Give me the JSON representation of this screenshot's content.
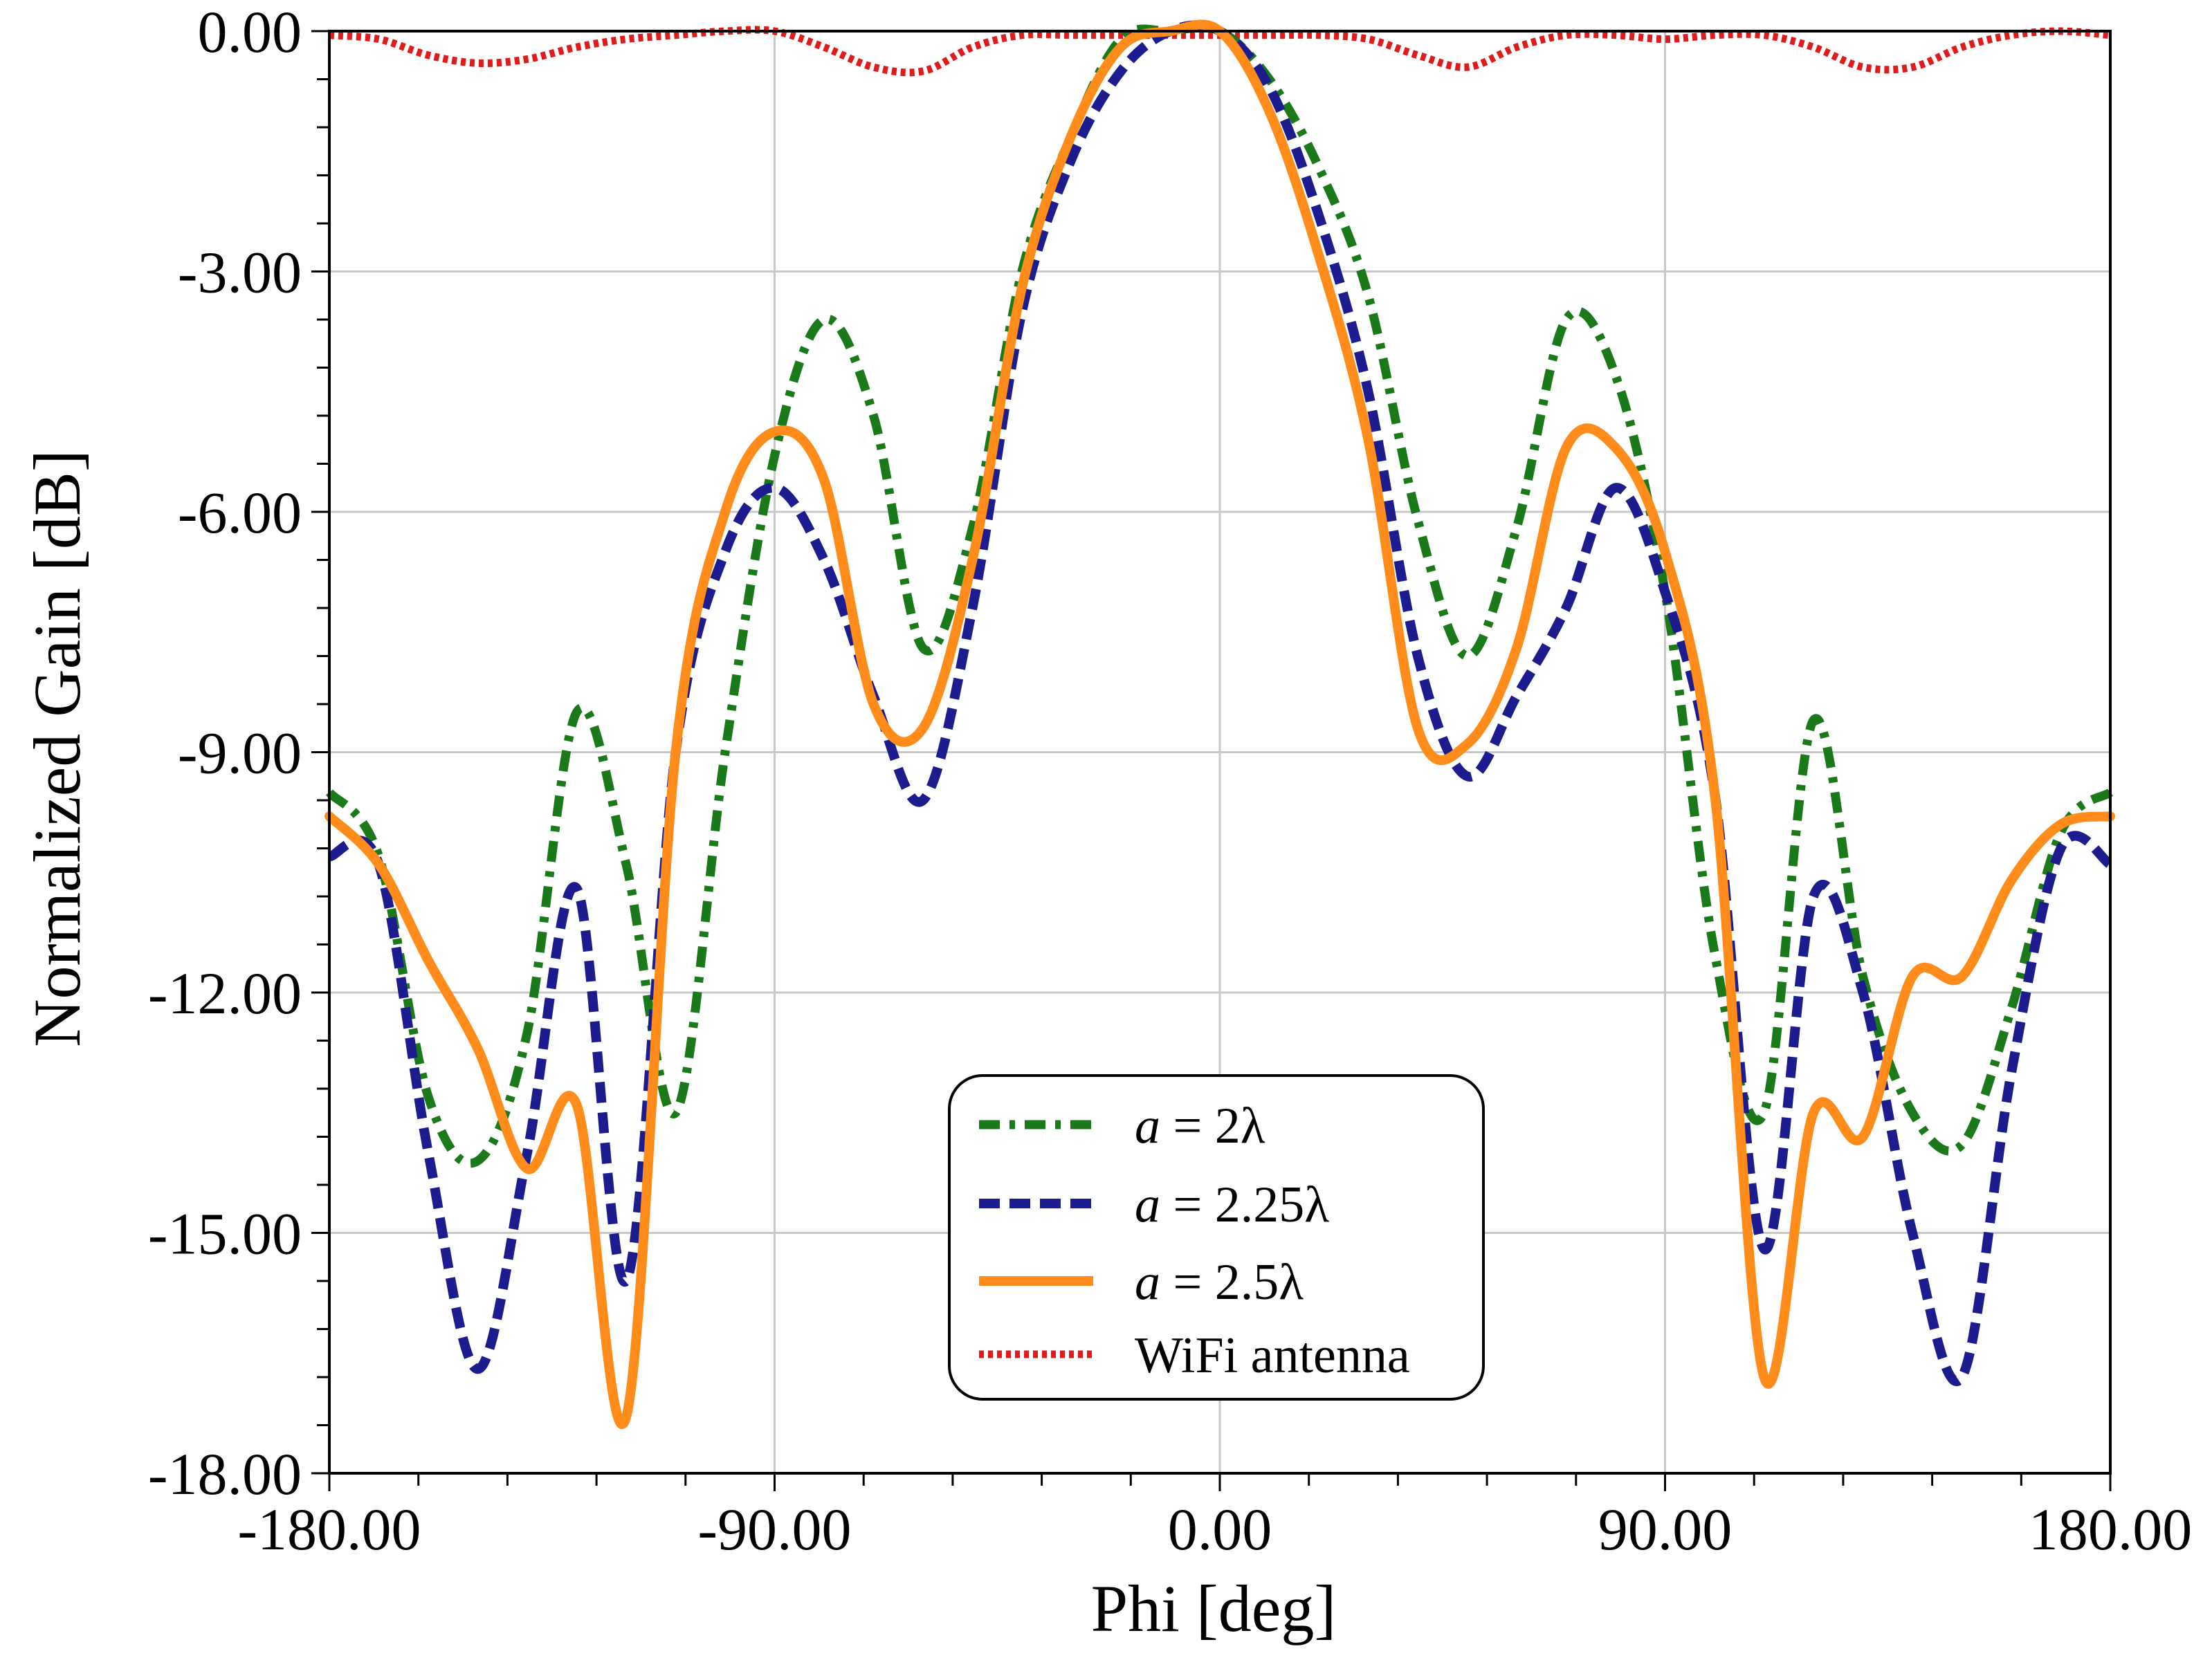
{
  "chart_data": {
    "type": "line",
    "title": "",
    "xlabel": "Phi [deg]",
    "ylabel": "Normalized Gain [dB]",
    "xlim": [
      -180,
      180
    ],
    "ylim": [
      -18,
      0
    ],
    "grid": true,
    "legend_position": "bottom-center",
    "x_ticks": [
      "-180.00",
      "-90.00",
      "0.00",
      "90.00",
      "180.00"
    ],
    "y_ticks": [
      "0.00",
      "-3.00",
      "-6.00",
      "-9.00",
      "-12.00",
      "-15.00",
      "-18.00"
    ],
    "x": [
      -180,
      -170,
      -160,
      -150,
      -140,
      -130,
      -120,
      -110,
      -100,
      -90,
      -80,
      -70,
      -60,
      -50,
      -40,
      -30,
      -20,
      -10,
      0,
      10,
      20,
      30,
      40,
      50,
      60,
      70,
      80,
      90,
      100,
      110,
      120,
      130,
      140,
      150,
      160,
      170,
      180
    ],
    "series": [
      {
        "name": "a = 2λ",
        "label_prefix": "a",
        "label_suffix": " = 2λ",
        "color": "#1a7a1a",
        "style": "dashdot",
        "values": [
          -9.5,
          -10.3,
          -13.3,
          -14.1,
          -12.5,
          -8.5,
          -10.4,
          -13.5,
          -9.0,
          -5.3,
          -3.6,
          -4.8,
          -7.7,
          -6.2,
          -3.0,
          -1.3,
          -0.1,
          0.0,
          0.0,
          -0.6,
          -1.7,
          -3.3,
          -6.1,
          -7.8,
          -6.2,
          -3.6,
          -4.3,
          -7.0,
          -11.5,
          -13.5,
          -8.6,
          -11.8,
          -13.5,
          -13.9,
          -12.2,
          -10.0,
          -9.5
        ]
      },
      {
        "name": "a = 2.25λ",
        "label_prefix": "a",
        "label_suffix": " = 2.25λ",
        "color": "#1c1c8f",
        "style": "dashed",
        "values": [
          -10.3,
          -10.4,
          -14.0,
          -16.7,
          -14.0,
          -10.7,
          -15.6,
          -9.0,
          -6.5,
          -5.7,
          -6.6,
          -8.3,
          -9.6,
          -7.2,
          -3.5,
          -1.6,
          -0.5,
          0.0,
          0.0,
          -0.7,
          -2.3,
          -4.5,
          -7.8,
          -9.3,
          -8.3,
          -7.2,
          -5.7,
          -7.0,
          -9.5,
          -15.2,
          -10.8,
          -12.0,
          -15.0,
          -16.8,
          -13.0,
          -10.2,
          -10.4
        ]
      },
      {
        "name": "a = 2.5λ",
        "label_prefix": "a",
        "label_suffix": " = 2.5λ",
        "color": "#ff8c1a",
        "style": "solid",
        "values": [
          -9.8,
          -10.4,
          -11.6,
          -12.7,
          -14.2,
          -13.4,
          -17.3,
          -9.0,
          -6.0,
          -5.0,
          -5.6,
          -8.4,
          -8.7,
          -6.6,
          -3.2,
          -1.3,
          -0.2,
          0.0,
          0.0,
          -1.0,
          -2.8,
          -5.1,
          -8.7,
          -8.9,
          -7.7,
          -5.2,
          -5.2,
          -6.5,
          -9.5,
          -16.8,
          -13.5,
          -13.8,
          -11.8,
          -11.8,
          -10.6,
          -9.9,
          -9.8
        ]
      },
      {
        "name": "WiFi antenna",
        "label_prefix": "",
        "label_suffix": "WiFi antenna",
        "color": "#e01b1b",
        "style": "dotted",
        "values": [
          -0.05,
          -0.1,
          -0.3,
          -0.4,
          -0.35,
          -0.2,
          -0.1,
          -0.05,
          0.0,
          0.0,
          -0.2,
          -0.45,
          -0.5,
          -0.2,
          -0.05,
          -0.05,
          -0.05,
          -0.05,
          -0.05,
          -0.05,
          -0.05,
          -0.1,
          -0.3,
          -0.45,
          -0.2,
          -0.05,
          -0.05,
          -0.1,
          -0.05,
          -0.05,
          -0.2,
          -0.45,
          -0.45,
          -0.2,
          -0.05,
          0.0,
          -0.05
        ]
      }
    ]
  }
}
